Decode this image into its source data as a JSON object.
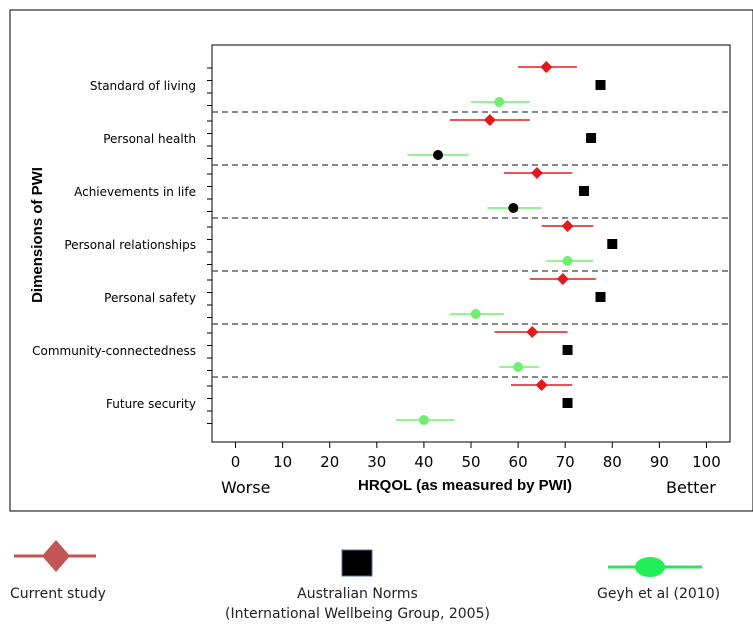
{
  "chart_data": {
    "type": "scatter",
    "title": "",
    "xlabel": "HRQOL (as measured by PWI)",
    "ylabel": "Dimensions of PWI",
    "x_ticks": [
      "0",
      "10",
      "20",
      "30",
      "40",
      "50",
      "60",
      "70",
      "80",
      "90",
      "100"
    ],
    "xlim": [
      -5,
      105
    ],
    "x_left_annotation": "Worse",
    "x_right_annotation": "Better",
    "grid": false,
    "categories": [
      "Standard of living",
      "Personal health",
      "Achievements in life",
      "Personal relationships",
      "Personal safety",
      "Community-connectedness",
      "Future security"
    ],
    "series": [
      {
        "name": "Current study",
        "marker": "diamond",
        "color": "#e31a1c",
        "values": [
          66,
          54,
          64,
          70.5,
          69.5,
          63,
          65
        ],
        "ci_low": [
          60,
          45.5,
          57,
          65,
          62.5,
          55,
          58.5
        ],
        "ci_high": [
          72.5,
          62.5,
          71.5,
          76,
          76.5,
          70.5,
          71.5
        ]
      },
      {
        "name": "Australian Norms",
        "marker": "square",
        "color": "#000000",
        "values": [
          77.5,
          75.5,
          74,
          80,
          77.5,
          70.5,
          70.5
        ]
      },
      {
        "name": "Geyh et al (2010)",
        "marker": "circle",
        "color": "#6ef06e",
        "values": [
          56,
          43,
          59,
          70.5,
          51,
          60,
          40
        ],
        "ci_low": [
          50,
          36.5,
          53.5,
          66,
          45.5,
          56,
          34
        ],
        "ci_high": [
          62.5,
          49.5,
          65,
          76,
          57,
          64.5,
          46.5
        ],
        "point_colors": [
          "#6ef06e",
          "#000000",
          "#000000",
          "#6ef06e",
          "#6ef06e",
          "#6ef06e",
          "#6ef06e"
        ]
      }
    ]
  },
  "legend": {
    "items": [
      {
        "label": "Current study",
        "icon": "red-diamond-line-icon"
      },
      {
        "label": "Australian Norms",
        "label2": "(International Wellbeing Group, 2005)",
        "icon": "black-square-icon"
      },
      {
        "label": "Geyh et al (2010)",
        "icon": "green-ellipse-line-icon"
      }
    ]
  }
}
